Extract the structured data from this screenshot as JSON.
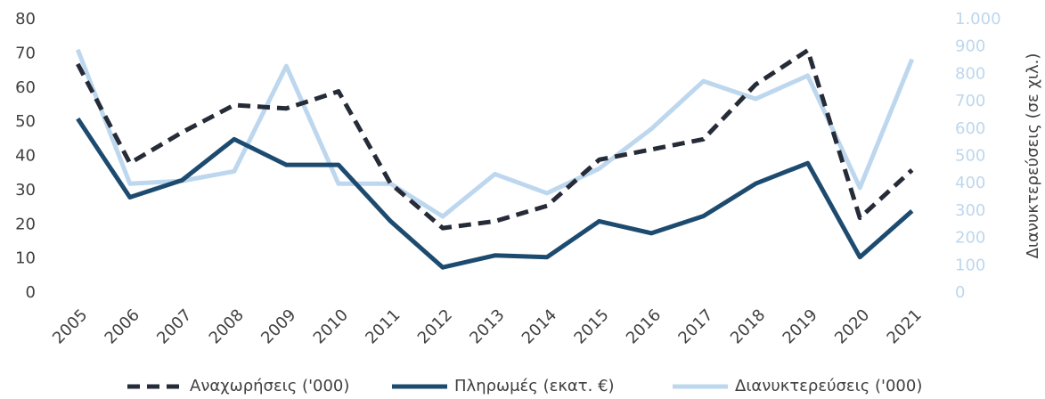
{
  "chart_data": {
    "type": "line",
    "categories": [
      "2005",
      "2006",
      "2007",
      "2008",
      "2009",
      "2010",
      "2011",
      "2012",
      "2013",
      "2014",
      "2015",
      "2016",
      "2017",
      "2018",
      "2019",
      "2020",
      "2021"
    ],
    "series": [
      {
        "name": "Αναχωρήσεις ('000)",
        "color": "#262b38",
        "dash": true,
        "values": [
          67,
          38,
          47,
          55,
          54,
          59,
          32,
          19,
          21,
          25.5,
          39,
          42,
          45,
          61,
          71,
          22,
          36
        ]
      },
      {
        "name": "Πληρωμές (εκατ. €)",
        "color": "#1d4b70",
        "values": [
          51,
          28,
          33,
          45,
          37.5,
          37.5,
          21,
          7.5,
          11,
          10.5,
          21,
          17.5,
          22.5,
          32,
          38,
          10.5,
          24
        ]
      },
      {
        "name": "Διανυκτερεύσεις ('000)",
        "color": "#bdd7ee",
        "axis": "y2",
        "values": [
          890,
          400,
          410,
          445,
          830,
          400,
          400,
          280,
          435,
          365,
          455,
          600,
          775,
          710,
          795,
          385,
          855
        ]
      }
    ],
    "ylim": [
      0,
      80
    ],
    "yticks": [
      0,
      10,
      20,
      30,
      40,
      50,
      60,
      70,
      80
    ],
    "y2lim": [
      0,
      1000
    ],
    "y2ticks": [
      0,
      100,
      200,
      300,
      400,
      500,
      600,
      700,
      800,
      900,
      {
        "value": 1000,
        "label": "1.000"
      }
    ],
    "y2label": "Διανυκτερεύσεις (σε χιλ.)",
    "y2tick_color": "#bdd7ee",
    "legend": "bottom"
  }
}
